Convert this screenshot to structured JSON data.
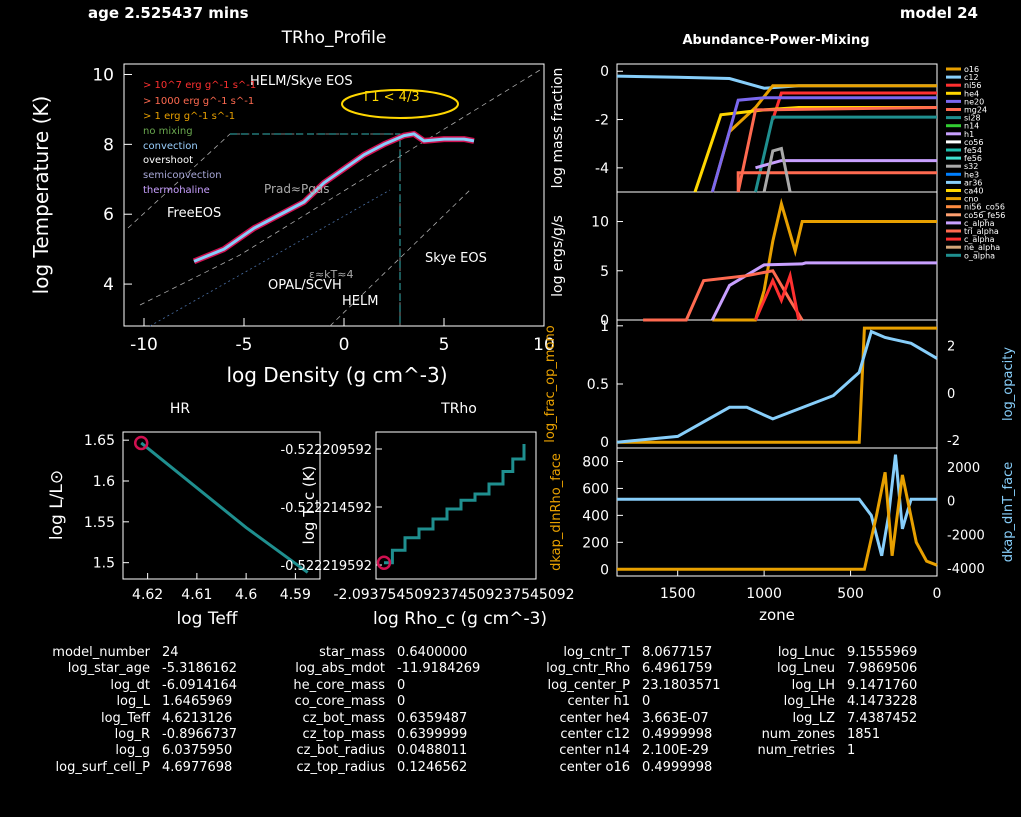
{
  "header": {
    "age": "age 2.525437 mins",
    "model": "model 24"
  },
  "chart_data": [
    {
      "type": "line",
      "title": "TRho_Profile",
      "xlabel": "log Density (g cm^-3)",
      "ylabel": "log Temperature (K)",
      "xlim": [
        -11,
        10
      ],
      "ylim": [
        2.8,
        10.3
      ],
      "xticks": [
        "-10",
        "-5",
        "0",
        "5",
        "10"
      ],
      "yticks": [
        "4",
        "6",
        "8",
        "10"
      ],
      "annotations": [
        "HELM/Skye EOS",
        "Γ1 < 4/3",
        "Prad≈Pgas",
        "FreeEOS",
        "OPAL/SCVH",
        "ε≈kT≈4",
        "HELM",
        "Skye EOS"
      ],
      "legend": [
        {
          "label": "> 10^7 erg g^-1 s^-1",
          "color": "#ff3030"
        },
        {
          "label": "> 1000 erg g^-1 s^-1",
          "color": "#ff6a50"
        },
        {
          "label": "> 1 erg g^-1 s^-1",
          "color": "#e8a000"
        },
        {
          "label": "no mixing",
          "color": "#6aa84f"
        },
        {
          "label": "convection",
          "color": "#9ad0ff"
        },
        {
          "label": "overshoot",
          "color": "#ffffff"
        },
        {
          "label": "semiconvection",
          "color": "#a8a8d8"
        },
        {
          "label": "thermohaline",
          "color": "#c8a0ff"
        }
      ],
      "series": [
        {
          "color": "#87cefa",
          "x": [
            -7.5,
            -6,
            -4.5,
            -3,
            -2,
            -1,
            0,
            1,
            2,
            3,
            3.5,
            4,
            5,
            6,
            6.5
          ],
          "y": [
            4.65,
            5.0,
            5.6,
            6.05,
            6.35,
            6.9,
            7.3,
            7.7,
            8.0,
            8.25,
            8.3,
            8.1,
            8.15,
            8.15,
            8.1
          ]
        }
      ]
    },
    {
      "type": "line",
      "title": "HR",
      "xlabel": "log Teff",
      "ylabel": "log L/L⊙",
      "xlim": [
        4.625,
        4.585
      ],
      "ylim": [
        1.48,
        1.66
      ],
      "xticks": [
        "4.62",
        "4.61",
        "4.6",
        "4.59"
      ],
      "yticks": [
        "1.5",
        "1.55",
        "1.6",
        "1.65"
      ],
      "series": [
        {
          "color": "#1f8f8f",
          "x": [
            4.6213,
            4.6,
            4.5875
          ],
          "y": [
            1.6466,
            1.543,
            1.488
          ]
        }
      ]
    },
    {
      "type": "line",
      "title": "TRho",
      "xlabel": "log Rho_c (g cm^-3)",
      "ylabel": "log T_c (K)",
      "xticks": [
        "-2.0937545092374509237545092"
      ],
      "yticks": [
        "-0.522219592",
        "-0.522214592",
        "-0.522209592"
      ],
      "series": [
        {
          "color": "#1f8f8f",
          "x": [
            0,
            0.06,
            0.15,
            0.25,
            0.35,
            0.45,
            0.55,
            0.65,
            0.75,
            0.85,
            0.92,
            1.0
          ],
          "y": [
            0.05,
            0.15,
            0.25,
            0.32,
            0.4,
            0.48,
            0.55,
            0.6,
            0.68,
            0.78,
            0.88,
            1.0
          ]
        }
      ]
    },
    {
      "type": "line",
      "title": "Abundance-Power-Mixing",
      "xlabel": "zone",
      "xlim": [
        1851,
        0
      ],
      "xticks": [
        "1500",
        "1000",
        "500",
        "0"
      ],
      "panels": [
        {
          "ylabel": "log mass fraction",
          "yticks": [
            "0",
            "-2",
            "-4"
          ],
          "ylim": [
            -5,
            0.3
          ]
        },
        {
          "ylabel": "log ergs/g/s",
          "yticks": [
            "0",
            "5",
            "10"
          ],
          "ylim": [
            0,
            13
          ]
        },
        {
          "ylabel": "log_frac_op_mono",
          "yticks": [
            "0",
            "0.5",
            "1"
          ],
          "ylim": [
            -0.05,
            1.05
          ],
          "y2label": "log_opacity",
          "y2ticks": [
            "-2",
            "0",
            "2"
          ]
        },
        {
          "ylabel": "dkap_dlnRho_face",
          "yticks": [
            "0",
            "200",
            "400",
            "600",
            "800"
          ],
          "ylim": [
            -50,
            900
          ],
          "y2label": "dkap_dlnT_face",
          "y2ticks": [
            "-4000",
            "-2000",
            "0",
            "2000"
          ]
        }
      ],
      "legend": [
        {
          "label": "o16",
          "color": "#e8a000"
        },
        {
          "label": "c12",
          "color": "#87cefa"
        },
        {
          "label": "ni56",
          "color": "#ff3030"
        },
        {
          "label": "he4",
          "color": "#ffd700"
        },
        {
          "label": "ne20",
          "color": "#7b68ee"
        },
        {
          "label": "mg24",
          "color": "#ff6a50"
        },
        {
          "label": "si28",
          "color": "#1f8f8f"
        },
        {
          "label": "n14",
          "color": "#32cd32"
        },
        {
          "label": "h1",
          "color": "#c8a0ff"
        },
        {
          "label": "co56",
          "color": "#ffffff"
        },
        {
          "label": "fe54",
          "color": "#20c0b0"
        },
        {
          "label": "fe56",
          "color": "#40e0d0"
        },
        {
          "label": "s32",
          "color": "#a9a9a9"
        },
        {
          "label": "he3",
          "color": "#0080ff"
        },
        {
          "label": "ar36",
          "color": "#87cefa"
        },
        {
          "label": "ca40",
          "color": "#ffd700"
        },
        {
          "label": "cno",
          "color": "#e8a000"
        },
        {
          "label": "ni56_co56",
          "color": "#ff8c40"
        },
        {
          "label": "co56_fe56",
          "color": "#ffa070"
        },
        {
          "label": "c_alpha",
          "color": "#c8a0ff"
        },
        {
          "label": "tri_alpha",
          "color": "#ff6a50"
        },
        {
          "label": "c_alpha",
          "color": "#ff3030"
        },
        {
          "label": "ne_alpha",
          "color": "#d2a679"
        },
        {
          "label": "o_alpha",
          "color": "#1f8f8f"
        }
      ]
    }
  ],
  "info": {
    "col1": [
      [
        "model_number",
        "24"
      ],
      [
        "log_star_age",
        "-5.3186162"
      ],
      [
        "log_dt",
        "-6.0914164"
      ],
      [
        "log_L",
        "1.6465969"
      ],
      [
        "log_Teff",
        "4.6213126"
      ],
      [
        "log_R",
        "-0.8966737"
      ],
      [
        "log_g",
        "6.0375950"
      ],
      [
        "log_surf_cell_P",
        "4.6977698"
      ]
    ],
    "col2": [
      [
        "star_mass",
        "0.6400000"
      ],
      [
        "log_abs_mdot",
        "-11.9184269"
      ],
      [
        "he_core_mass",
        "0"
      ],
      [
        "co_core_mass",
        "0"
      ],
      [
        "cz_bot_mass",
        "0.6359487"
      ],
      [
        "cz_top_mass",
        "0.6399999"
      ],
      [
        "cz_bot_radius",
        "0.0488011"
      ],
      [
        "cz_top_radius",
        "0.1246562"
      ]
    ],
    "col3": [
      [
        "log_cntr_T",
        "8.0677157"
      ],
      [
        "log_cntr_Rho",
        "6.4961759"
      ],
      [
        "log_center_P",
        "23.1803571"
      ],
      [
        "center h1",
        "0"
      ],
      [
        "center he4",
        "3.663E-07"
      ],
      [
        "center c12",
        "0.4999998"
      ],
      [
        "center n14",
        "2.100E-29"
      ],
      [
        "center o16",
        "0.4999998"
      ]
    ],
    "col4": [
      [
        "log_Lnuc",
        "9.1555969"
      ],
      [
        "log_Lneu",
        "7.9869506"
      ],
      [
        "log_LH",
        "9.1471760"
      ],
      [
        "log_LHe",
        "4.1473228"
      ],
      [
        "log_LZ",
        "7.4387452"
      ],
      [
        "num_zones",
        "1851"
      ],
      [
        "num_retries",
        "1"
      ]
    ]
  }
}
